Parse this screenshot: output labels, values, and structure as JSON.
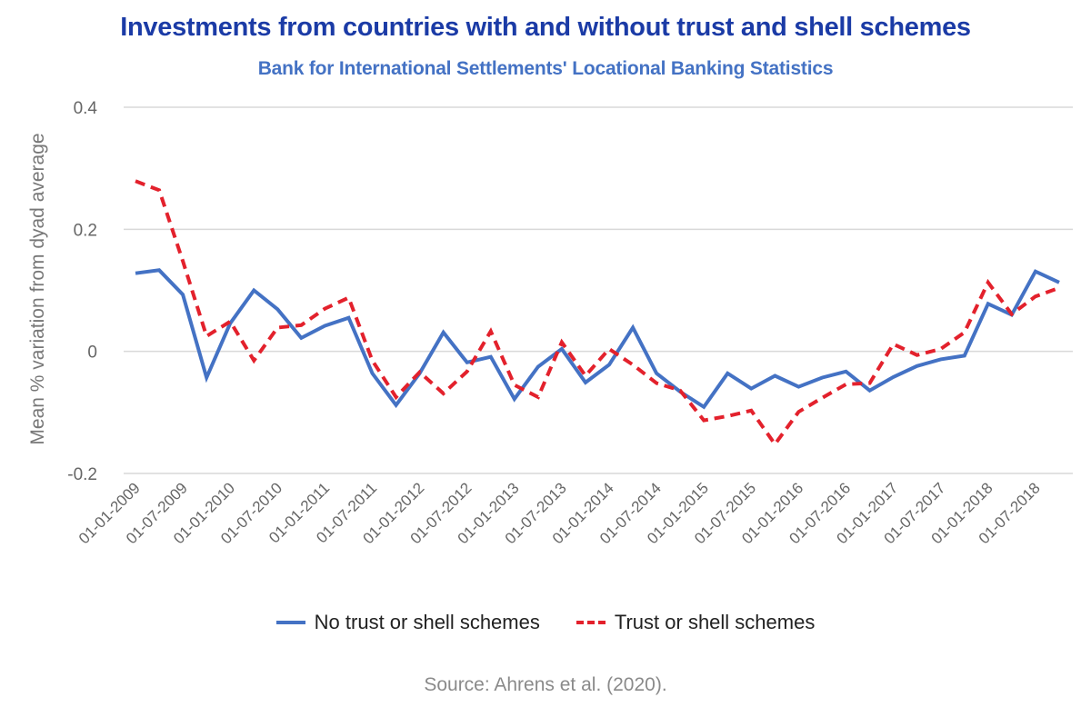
{
  "chart_data": {
    "type": "line",
    "title": "Investments from countries with and without trust and shell schemes",
    "subtitle": "Bank for International Settlements' Locational Banking Statistics",
    "xlabel": "",
    "ylabel": "Mean % variation from dyad average",
    "ylim": [
      -0.2,
      0.4
    ],
    "yticks": [
      {
        "value": 0.4,
        "label": "0.4"
      },
      {
        "value": 0.2,
        "label": "0.2"
      },
      {
        "value": 0,
        "label": "0"
      },
      {
        "value": -0.2,
        "label": "-0.2"
      }
    ],
    "grid": true,
    "x": [
      "2009-Q1",
      "2009-Q2",
      "2009-Q3",
      "2009-Q4",
      "2010-Q1",
      "2010-Q2",
      "2010-Q3",
      "2010-Q4",
      "2011-Q1",
      "2011-Q2",
      "2011-Q3",
      "2011-Q4",
      "2012-Q1",
      "2012-Q2",
      "2012-Q3",
      "2012-Q4",
      "2013-Q1",
      "2013-Q2",
      "2013-Q3",
      "2013-Q4",
      "2014-Q1",
      "2014-Q2",
      "2014-Q3",
      "2014-Q4",
      "2015-Q1",
      "2015-Q2",
      "2015-Q3",
      "2015-Q4",
      "2016-Q1",
      "2016-Q2",
      "2016-Q3",
      "2016-Q4",
      "2017-Q1",
      "2017-Q2",
      "2017-Q3",
      "2017-Q4",
      "2018-Q1",
      "2018-Q2",
      "2018-Q3",
      "2018-Q4"
    ],
    "xtick_labels": [
      {
        "index": 0,
        "label": "01-01-2009"
      },
      {
        "index": 2,
        "label": "01-07-2009"
      },
      {
        "index": 4,
        "label": "01-01-2010"
      },
      {
        "index": 6,
        "label": "01-07-2010"
      },
      {
        "index": 8,
        "label": "01-01-2011"
      },
      {
        "index": 10,
        "label": "01-07-2011"
      },
      {
        "index": 12,
        "label": "01-01-2012"
      },
      {
        "index": 14,
        "label": "01-07-2012"
      },
      {
        "index": 16,
        "label": "01-01-2013"
      },
      {
        "index": 18,
        "label": "01-07-2013"
      },
      {
        "index": 20,
        "label": "01-01-2014"
      },
      {
        "index": 22,
        "label": "01-07-2014"
      },
      {
        "index": 24,
        "label": "01-01-2015"
      },
      {
        "index": 26,
        "label": "01-07-2015"
      },
      {
        "index": 28,
        "label": "01-01-2016"
      },
      {
        "index": 30,
        "label": "01-07-2016"
      },
      {
        "index": 32,
        "label": "01-01-2017"
      },
      {
        "index": 34,
        "label": "01-07-2017"
      },
      {
        "index": 36,
        "label": "01-01-2018"
      },
      {
        "index": 38,
        "label": "01-07-2018"
      }
    ],
    "series": [
      {
        "name": "No trust or shell schemes",
        "color": "#4472c4",
        "style": "solid",
        "values": [
          0.128,
          0.133,
          0.093,
          -0.043,
          0.046,
          0.1,
          0.069,
          0.022,
          0.042,
          0.055,
          -0.036,
          -0.088,
          -0.036,
          0.031,
          -0.018,
          -0.009,
          -0.078,
          -0.025,
          0.004,
          -0.051,
          -0.022,
          0.039,
          -0.036,
          -0.066,
          -0.091,
          -0.036,
          -0.061,
          -0.04,
          -0.058,
          -0.043,
          -0.033,
          -0.064,
          -0.042,
          -0.024,
          -0.013,
          -0.007,
          0.078,
          0.06,
          0.131,
          0.113
        ]
      },
      {
        "name": "Trust or shell schemes",
        "color": "#e3212c",
        "style": "dashed",
        "values": [
          0.279,
          0.264,
          0.148,
          0.025,
          0.049,
          -0.015,
          0.039,
          0.043,
          0.07,
          0.088,
          -0.015,
          -0.075,
          -0.034,
          -0.069,
          -0.033,
          0.033,
          -0.055,
          -0.075,
          0.015,
          -0.04,
          0.004,
          -0.022,
          -0.052,
          -0.064,
          -0.113,
          -0.106,
          -0.097,
          -0.152,
          -0.099,
          -0.076,
          -0.054,
          -0.052,
          0.012,
          -0.006,
          0.004,
          0.031,
          0.113,
          0.061,
          0.09,
          0.104
        ]
      }
    ],
    "legend": {
      "placement": "bottom-center",
      "entries": [
        "No trust or shell schemes",
        "Trust or shell schemes"
      ]
    },
    "source": "Source: Ahrens et al. (2020)."
  }
}
